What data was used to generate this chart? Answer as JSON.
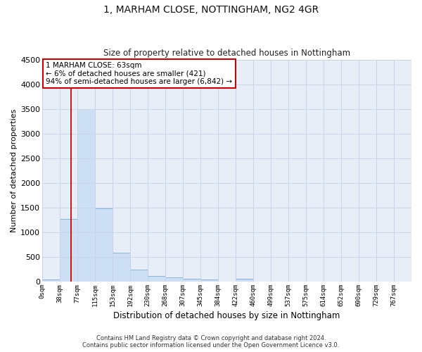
{
  "title": "1, MARHAM CLOSE, NOTTINGHAM, NG2 4GR",
  "subtitle": "Size of property relative to detached houses in Nottingham",
  "xlabel": "Distribution of detached houses by size in Nottingham",
  "ylabel": "Number of detached properties",
  "bar_color": "#ccdff5",
  "bar_edge_color": "#7aaed6",
  "bin_labels": [
    "0sqm",
    "38sqm",
    "77sqm",
    "115sqm",
    "153sqm",
    "192sqm",
    "230sqm",
    "268sqm",
    "307sqm",
    "345sqm",
    "384sqm",
    "422sqm",
    "460sqm",
    "499sqm",
    "537sqm",
    "575sqm",
    "614sqm",
    "652sqm",
    "690sqm",
    "729sqm",
    "767sqm"
  ],
  "bar_heights": [
    50,
    1270,
    3500,
    1480,
    580,
    240,
    115,
    80,
    55,
    40,
    0,
    60,
    0,
    0,
    0,
    0,
    0,
    0,
    0,
    0,
    0
  ],
  "ylim": [
    0,
    4500
  ],
  "yticks": [
    0,
    500,
    1000,
    1500,
    2000,
    2500,
    3000,
    3500,
    4000,
    4500
  ],
  "vline_x": 1.63,
  "vline_color": "#cc0000",
  "annotation_text": "1 MARHAM CLOSE: 63sqm\n← 6% of detached houses are smaller (421)\n94% of semi-detached houses are larger (6,842) →",
  "annotation_box_color": "#ffffff",
  "annotation_box_edge_color": "#cc0000",
  "grid_color": "#c8d4e8",
  "background_color": "#e8eef8",
  "footer_line1": "Contains HM Land Registry data © Crown copyright and database right 2024.",
  "footer_line2": "Contains public sector information licensed under the Open Government Licence v3.0."
}
